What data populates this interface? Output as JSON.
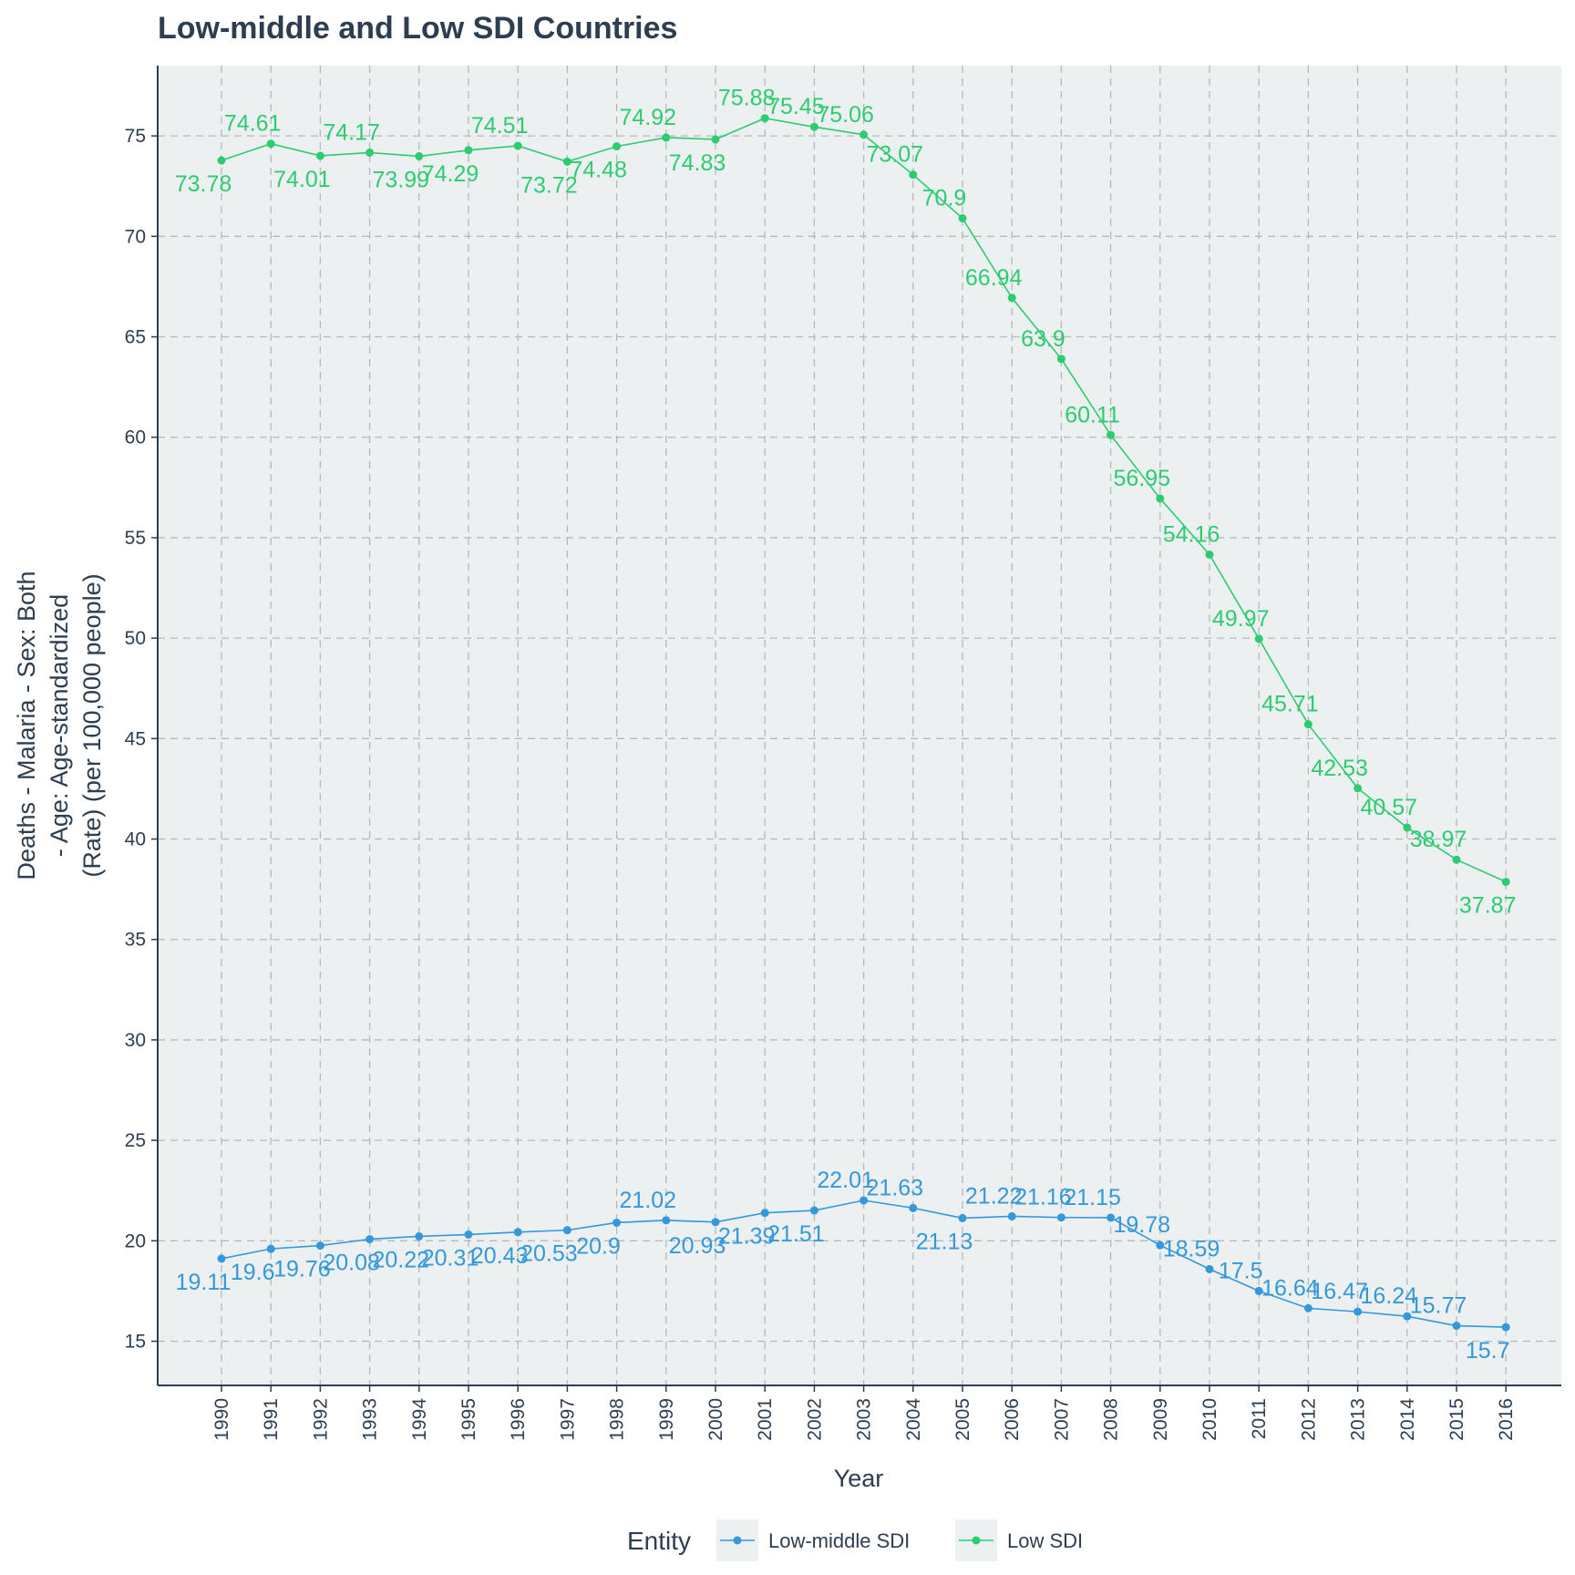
{
  "chart_data": {
    "type": "line",
    "title": "Low-middle and Low SDI Countries",
    "xlabel": "Year",
    "ylabel_lines": [
      "Deaths - Malaria - Sex: Both",
      "- Age: Age-standardized",
      "(Rate) (per 100,000 people)"
    ],
    "x": [
      1990,
      1991,
      1992,
      1993,
      1994,
      1995,
      1996,
      1997,
      1998,
      1999,
      2000,
      2001,
      2002,
      2003,
      2004,
      2005,
      2006,
      2007,
      2008,
      2009,
      2010,
      2011,
      2012,
      2013,
      2014,
      2015,
      2016
    ],
    "yticks": [
      15,
      20,
      25,
      30,
      35,
      40,
      45,
      50,
      55,
      60,
      65,
      70,
      75
    ],
    "ylim": [
      12.8,
      78.5
    ],
    "grid": true,
    "legend": {
      "title": "Entity",
      "position": "bottom"
    },
    "series": [
      {
        "name": "Low-middle SDI",
        "color": "#3498db",
        "values": [
          19.11,
          19.6,
          19.76,
          20.08,
          20.22,
          20.31,
          20.43,
          20.53,
          20.9,
          21.02,
          20.93,
          21.39,
          21.51,
          22.01,
          21.63,
          21.13,
          21.22,
          21.16,
          21.15,
          19.78,
          18.59,
          17.5,
          16.64,
          16.47,
          16.24,
          15.77,
          15.7
        ]
      },
      {
        "name": "Low SDI",
        "color": "#2ecc71",
        "values": [
          73.78,
          74.61,
          74.01,
          74.17,
          73.99,
          74.29,
          74.51,
          73.72,
          74.48,
          74.92,
          74.83,
          75.88,
          75.45,
          75.06,
          73.07,
          70.9,
          66.94,
          63.9,
          60.11,
          56.95,
          54.16,
          49.97,
          45.71,
          42.53,
          40.57,
          38.97,
          37.87
        ]
      }
    ]
  },
  "colors": {
    "panel_bg": "#ecf0f1",
    "axis": "#2c3e50",
    "grid": "#b4b9bc"
  }
}
